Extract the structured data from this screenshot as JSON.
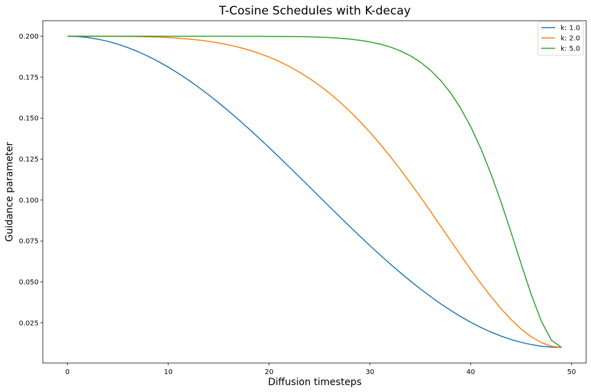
{
  "chart_data": {
    "type": "line",
    "title": "T-Cosine Schedules with K-decay",
    "xlabel": "Diffusion timesteps",
    "ylabel": "Guidance parameter",
    "xlim": [
      -2.45,
      51.45
    ],
    "ylim": [
      0.0005,
      0.2095
    ],
    "xticks": [
      0,
      10,
      20,
      30,
      40,
      50
    ],
    "yticks": [
      0.025,
      0.05,
      0.075,
      0.1,
      0.125,
      0.15,
      0.175,
      0.2
    ],
    "ytick_labels": [
      "0.025",
      "0.050",
      "0.075",
      "0.100",
      "0.125",
      "0.150",
      "0.175",
      "0.200"
    ],
    "grid": false,
    "legend_position": "top-right",
    "n_points": 50,
    "max_value": 0.2,
    "min_value": 0.01,
    "series": [
      {
        "name": "k: 1.0",
        "k": 1.0,
        "color": "#1f77b4"
      },
      {
        "name": "k: 2.0",
        "k": 2.0,
        "color": "#ff7f0e"
      },
      {
        "name": "k: 5.0",
        "k": 5.0,
        "color": "#2ca02c"
      }
    ]
  }
}
